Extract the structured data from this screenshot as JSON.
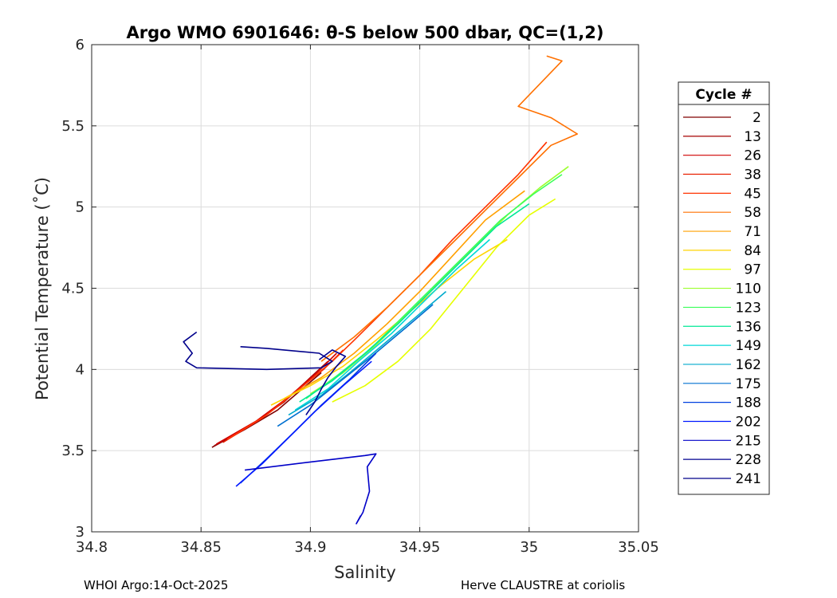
{
  "chart_data": {
    "type": "line",
    "title": "Argo WMO 6901646: θ-S below 500 dbar,  QC=(1,2)",
    "xlabel": "Salinity",
    "ylabel": "Potential Temperature (˚C)",
    "xlim": [
      34.8,
      35.05
    ],
    "ylim": [
      3,
      6
    ],
    "xticks": [
      34.8,
      34.85,
      34.9,
      34.95,
      35,
      35.05
    ],
    "xtick_labels": [
      "34.8",
      "34.85",
      "34.9",
      "34.95",
      "35",
      "35.05"
    ],
    "yticks": [
      3,
      3.5,
      4,
      4.5,
      5,
      5.5,
      6
    ],
    "ytick_labels": [
      "3",
      "3.5",
      "4",
      "4.5",
      "5",
      "5.5",
      "6"
    ],
    "grid": true,
    "legend_title": "Cycle #",
    "legend_placement": "right",
    "series": [
      {
        "name": "2",
        "color": "#800000",
        "x": [
          34.855,
          34.87,
          34.885,
          34.898,
          34.905
        ],
        "y": [
          3.52,
          3.63,
          3.75,
          3.9,
          3.98
        ]
      },
      {
        "name": "13",
        "color": "#a60000",
        "x": [
          34.856,
          34.872,
          34.888,
          34.9,
          34.908
        ],
        "y": [
          3.53,
          3.65,
          3.8,
          3.95,
          4.05
        ]
      },
      {
        "name": "26",
        "color": "#d00000",
        "x": [
          34.857,
          34.875,
          34.89,
          34.903,
          34.912
        ],
        "y": [
          3.54,
          3.68,
          3.83,
          3.98,
          4.1
        ]
      },
      {
        "name": "38",
        "color": "#e82000",
        "x": [
          34.86,
          34.878,
          34.893,
          34.906,
          34.915
        ],
        "y": [
          3.55,
          3.7,
          3.86,
          4.0,
          4.12
        ]
      },
      {
        "name": "45",
        "color": "#ff3300",
        "x": [
          34.862,
          34.88,
          34.895,
          34.91,
          34.92,
          34.935,
          34.95,
          34.965,
          34.98,
          34.995,
          35.008
        ],
        "y": [
          3.57,
          3.72,
          3.88,
          4.05,
          4.18,
          4.38,
          4.58,
          4.8,
          5.0,
          5.2,
          5.4
        ]
      },
      {
        "name": "58",
        "color": "#ff7000",
        "x": [
          34.905,
          34.92,
          34.935,
          34.95,
          34.965,
          34.98,
          34.995,
          35.01,
          35.022,
          35.01,
          34.995,
          35.015,
          35.008
        ],
        "y": [
          4.05,
          4.2,
          4.38,
          4.58,
          4.78,
          4.98,
          5.18,
          5.38,
          5.45,
          5.55,
          5.62,
          5.9,
          5.93
        ]
      },
      {
        "name": "71",
        "color": "#ffa000",
        "x": [
          34.888,
          34.905,
          34.92,
          34.935,
          34.95,
          34.965,
          34.98,
          34.998
        ],
        "y": [
          3.82,
          3.95,
          4.1,
          4.28,
          4.48,
          4.7,
          4.92,
          5.1
        ]
      },
      {
        "name": "84",
        "color": "#ffd400",
        "x": [
          34.882,
          34.9,
          34.915,
          34.93,
          34.945,
          34.96,
          34.975,
          34.99
        ],
        "y": [
          3.78,
          3.9,
          4.02,
          4.18,
          4.35,
          4.52,
          4.68,
          4.8
        ]
      },
      {
        "name": "97",
        "color": "#e6ff00",
        "x": [
          34.91,
          34.925,
          34.94,
          34.955,
          34.97,
          34.985,
          35.0,
          35.012
        ],
        "y": [
          3.8,
          3.9,
          4.05,
          4.25,
          4.5,
          4.75,
          4.95,
          5.05
        ]
      },
      {
        "name": "110",
        "color": "#9cff2e",
        "x": [
          34.9,
          34.915,
          34.93,
          34.945,
          34.96,
          34.975,
          34.99,
          35.005,
          35.018
        ],
        "y": [
          3.85,
          3.98,
          4.15,
          4.35,
          4.55,
          4.75,
          4.95,
          5.12,
          5.25
        ]
      },
      {
        "name": "123",
        "color": "#3cff5a",
        "x": [
          34.898,
          34.912,
          34.927,
          34.942,
          34.957,
          34.972,
          34.987,
          35.002,
          35.015
        ],
        "y": [
          3.82,
          3.96,
          4.12,
          4.32,
          4.52,
          4.72,
          4.92,
          5.08,
          5.2
        ]
      },
      {
        "name": "136",
        "color": "#00e896",
        "x": [
          34.895,
          34.91,
          34.925,
          34.94,
          34.955,
          34.97,
          34.985,
          35.0
        ],
        "y": [
          3.8,
          3.93,
          4.1,
          4.28,
          4.48,
          4.68,
          4.88,
          5.02
        ]
      },
      {
        "name": "149",
        "color": "#00d8d8",
        "x": [
          34.893,
          34.908,
          34.922,
          34.937,
          34.952,
          34.967,
          34.982
        ],
        "y": [
          3.75,
          3.88,
          4.05,
          4.22,
          4.42,
          4.62,
          4.8
        ]
      },
      {
        "name": "162",
        "color": "#00aacc",
        "x": [
          34.89,
          34.905,
          34.918,
          34.933,
          34.948,
          34.962
        ],
        "y": [
          3.72,
          3.84,
          3.98,
          4.15,
          4.32,
          4.48
        ]
      },
      {
        "name": "175",
        "color": "#0070d0",
        "x": [
          34.885,
          34.9,
          34.913,
          34.928,
          34.943,
          34.956
        ],
        "y": [
          3.65,
          3.78,
          3.92,
          4.08,
          4.25,
          4.4
        ]
      },
      {
        "name": "188",
        "color": "#0040e0",
        "x": [
          34.868,
          34.88,
          34.893,
          34.905,
          34.918,
          34.93
        ],
        "y": [
          3.3,
          3.45,
          3.62,
          3.78,
          3.94,
          4.1
        ]
      },
      {
        "name": "202",
        "color": "#0018ff",
        "x": [
          34.866,
          34.878,
          34.89,
          34.902,
          34.915,
          34.928
        ],
        "y": [
          3.28,
          3.42,
          3.58,
          3.74,
          3.9,
          4.05
        ]
      },
      {
        "name": "215",
        "color": "#0000c8",
        "x": [
          34.87,
          34.9,
          34.925,
          34.93,
          34.926,
          34.927,
          34.924,
          34.921,
          34.923
        ],
        "y": [
          3.38,
          3.43,
          3.47,
          3.48,
          3.4,
          3.25,
          3.12,
          3.05,
          3.1
        ]
      },
      {
        "name": "228",
        "color": "#000090",
        "x": [
          34.898,
          34.902,
          34.905,
          34.908,
          34.912,
          34.916,
          34.91,
          34.904
        ],
        "y": [
          3.72,
          3.8,
          3.88,
          3.95,
          4.02,
          4.08,
          4.12,
          4.06
        ]
      },
      {
        "name": "241",
        "color": "#00008b",
        "x": [
          34.848,
          34.842,
          34.846,
          34.843,
          34.848,
          34.88,
          34.905,
          34.91,
          34.904,
          34.88,
          34.868
        ],
        "y": [
          4.23,
          4.17,
          4.1,
          4.05,
          4.01,
          4.0,
          4.01,
          4.05,
          4.1,
          4.13,
          4.14
        ]
      }
    ]
  },
  "footer": {
    "left": "WHOI Argo:14-Oct-2025",
    "right": "Herve CLAUSTRE at coriolis"
  }
}
